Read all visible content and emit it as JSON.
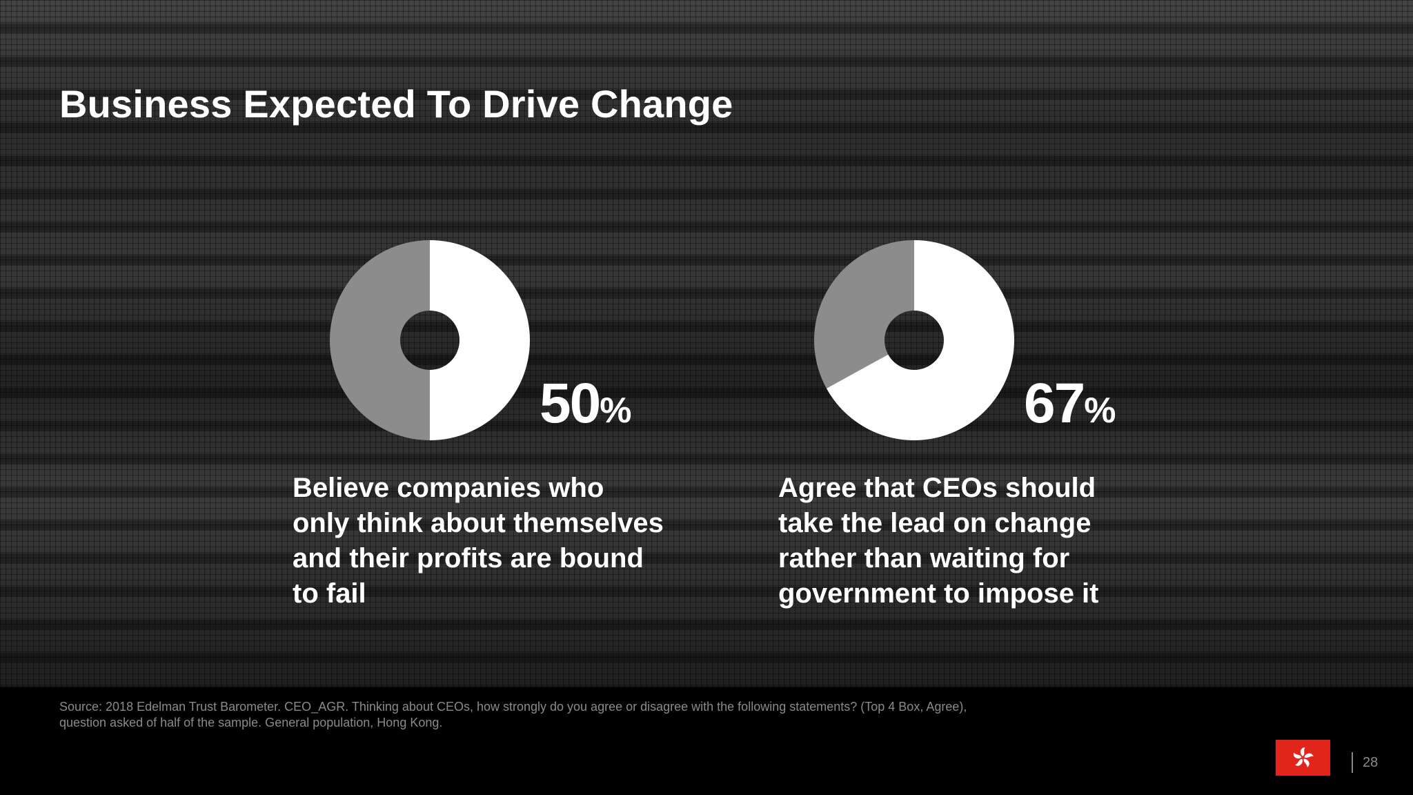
{
  "slide": {
    "title": "Business Expected To Drive Change",
    "source": "Source: 2018 Edelman Trust Barometer. CEO_AGR. Thinking about CEOs, how strongly do you agree or disagree with the following statements? (Top 4 Box, Agree), question asked of half of the sample. General population, Hong Kong.",
    "page_number": "28",
    "flag_icon": "hong-kong-flag-icon"
  },
  "colors": {
    "highlight": "#ffffff",
    "remainder": "#8c8c8c",
    "flag": "#e1251b"
  },
  "chart_data": [
    {
      "type": "pie",
      "categories": [
        "Believe",
        "Other"
      ],
      "values": [
        50,
        50
      ],
      "label_value": "50",
      "label_unit": "%",
      "description": "Believe companies who only think about themselves and their profits are bound to fail"
    },
    {
      "type": "pie",
      "categories": [
        "Agree",
        "Other"
      ],
      "values": [
        67,
        33
      ],
      "label_value": "67",
      "label_unit": "%",
      "description": "Agree that CEOs should take the lead on change rather than waiting for government to impose it"
    }
  ]
}
